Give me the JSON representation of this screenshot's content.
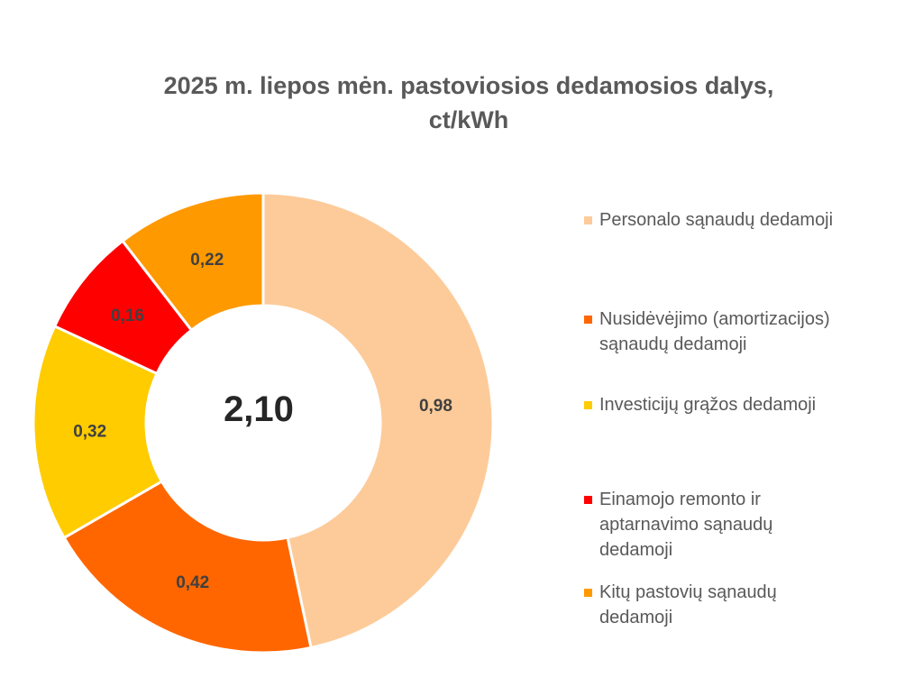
{
  "chart_data": {
    "type": "pie",
    "variant": "donut",
    "title": "2025 m.  liepos mėn.  pastoviosios dedamosios dalys,",
    "title_line2": "ct/kWh",
    "center_total": "2,10",
    "legend_position": "right",
    "slices": [
      {
        "name": "Personalo sąnaudų dedamoji",
        "value": 0.98,
        "label": "0,98",
        "color": "#FDCB99"
      },
      {
        "name": "Nusidėvėjimo (amortizacijos) sąnaudų dedamoji",
        "value": 0.42,
        "label": "0,42",
        "color": "#FF6600"
      },
      {
        "name": "Investicijų grąžos dedamoji",
        "value": 0.32,
        "label": "0,32",
        "color": "#FFCC00"
      },
      {
        "name": "Einamojo remonto ir aptarnavimo sąnaudų dedamoji",
        "value": 0.16,
        "label": "0,16",
        "color": "#FF0000"
      },
      {
        "name": "Kitų pastovių sąnaudų dedamoji",
        "value": 0.22,
        "label": "0,22",
        "color": "#FF9900"
      }
    ]
  }
}
